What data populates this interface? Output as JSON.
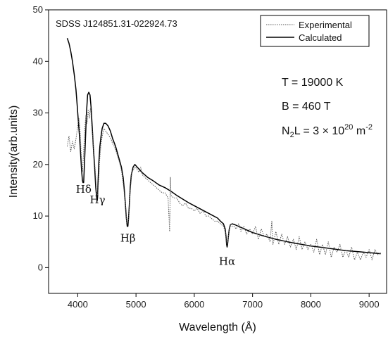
{
  "chart_data": {
    "type": "line",
    "annotation": "SDSS J124851.31-022924.73",
    "xlabel": "Wavelength (Å)",
    "ylabel": "Intensity(arb.units)",
    "xlim": [
      3500,
      9300
    ],
    "ylim": [
      -5,
      50
    ],
    "xticks": [
      4000,
      5000,
      6000,
      7000,
      8000,
      9000
    ],
    "yticks": [
      0,
      10,
      20,
      30,
      40,
      50
    ],
    "legend": {
      "placement": "top-right",
      "entries": [
        "Experimental",
        "Calculated"
      ]
    },
    "parameters": {
      "temperature": "T = 19000 K",
      "field": "B = 460 T",
      "column_main": "N",
      "column_sub": "2",
      "column_mid": "L = 3 × 10",
      "column_sup": "20",
      "column_unit": " m",
      "column_unit_sup": "-2"
    },
    "line_labels": [
      {
        "text": "Hδ",
        "x": 4102,
        "y": 14.5
      },
      {
        "text": "Hγ",
        "x": 4340,
        "y": 12.5
      },
      {
        "text": "Hβ",
        "x": 4861,
        "y": 5.0
      },
      {
        "text": "Hα",
        "x": 6563,
        "y": 0.5
      }
    ],
    "series": [
      {
        "name": "Calculated",
        "style": "solid",
        "color": "#000000",
        "x": [
          3820,
          3850,
          3880,
          3910,
          3940,
          3970,
          3990,
          4010,
          4030,
          4050,
          4065,
          4080,
          4090,
          4102,
          4115,
          4130,
          4150,
          4170,
          4190,
          4210,
          4230,
          4250,
          4270,
          4290,
          4310,
          4325,
          4335,
          4340,
          4348,
          4360,
          4380,
          4400,
          4420,
          4450,
          4480,
          4520,
          4560,
          4600,
          4650,
          4700,
          4750,
          4780,
          4800,
          4820,
          4835,
          4850,
          4861,
          4872,
          4885,
          4900,
          4920,
          4950,
          4980,
          5020,
          5060,
          5100,
          5200,
          5300,
          5400,
          5500,
          5600,
          5700,
          5800,
          5900,
          6000,
          6100,
          6200,
          6300,
          6400,
          6450,
          6500,
          6530,
          6545,
          6555,
          6563,
          6572,
          6585,
          6600,
          6620,
          6650,
          6700,
          6800,
          6900,
          7000,
          7200,
          7400,
          7600,
          7800,
          8000,
          8200,
          8400,
          8600,
          8800,
          9000,
          9200
        ],
        "y": [
          44.5,
          43.5,
          42.0,
          40.0,
          37.5,
          34.5,
          31.5,
          28.5,
          25.5,
          22.0,
          19.0,
          17.0,
          16.5,
          16.5,
          20.0,
          24.0,
          30.0,
          33.5,
          34.0,
          33.5,
          31.0,
          27.0,
          23.0,
          19.5,
          15.5,
          13.5,
          13.0,
          13.5,
          16.5,
          20.0,
          23.5,
          25.5,
          27.0,
          28.0,
          28.0,
          27.5,
          26.5,
          25.0,
          23.5,
          21.5,
          19.5,
          17.5,
          15.0,
          12.0,
          9.5,
          8.0,
          8.0,
          9.5,
          12.0,
          15.5,
          18.0,
          19.5,
          20.0,
          19.5,
          19.0,
          18.5,
          17.5,
          16.8,
          16.0,
          15.5,
          14.8,
          14.0,
          13.3,
          12.6,
          12.0,
          11.4,
          10.8,
          10.2,
          9.6,
          9.0,
          8.5,
          7.5,
          6.0,
          4.5,
          4.0,
          4.5,
          6.0,
          7.5,
          8.3,
          8.5,
          8.3,
          7.8,
          7.3,
          6.8,
          6.1,
          5.5,
          5.0,
          4.6,
          4.2,
          3.9,
          3.6,
          3.3,
          3.1,
          2.9,
          2.7
        ]
      },
      {
        "name": "Experimental",
        "style": "dotted",
        "color": "#555555",
        "x": [
          3820,
          3850,
          3880,
          3910,
          3940,
          3970,
          4000,
          4020,
          4040,
          4060,
          4080,
          4100,
          4120,
          4140,
          4160,
          4180,
          4200,
          4220,
          4240,
          4260,
          4280,
          4300,
          4320,
          4340,
          4360,
          4380,
          4400,
          4420,
          4450,
          4480,
          4510,
          4540,
          4570,
          4600,
          4630,
          4660,
          4700,
          4740,
          4780,
          4810,
          4830,
          4845,
          4861,
          4875,
          4890,
          4910,
          4930,
          4960,
          4990,
          5020,
          5050,
          5080,
          5110,
          5150,
          5200,
          5250,
          5300,
          5350,
          5400,
          5450,
          5500,
          5550,
          5577,
          5590,
          5600,
          5650,
          5700,
          5750,
          5800,
          5850,
          5900,
          5950,
          6000,
          6050,
          6100,
          6150,
          6200,
          6250,
          6300,
          6350,
          6400,
          6450,
          6500,
          6530,
          6550,
          6563,
          6575,
          6590,
          6610,
          6630,
          6650,
          6680,
          6720,
          6760,
          6800,
          6850,
          6900,
          6950,
          7000,
          7050,
          7100,
          7150,
          7200,
          7250,
          7300,
          7330,
          7350,
          7400,
          7450,
          7500,
          7550,
          7600,
          7650,
          7700,
          7750,
          7800,
          7850,
          7900,
          7950,
          8000,
          8050,
          8100,
          8150,
          8200,
          8250,
          8300,
          8350,
          8400,
          8450,
          8500,
          8550,
          8600,
          8650,
          8700,
          8750,
          8800,
          8850,
          8900,
          8950,
          9000,
          9050,
          9100,
          9150,
          9200
        ],
        "y": [
          23.5,
          25.5,
          22.5,
          24.5,
          23.0,
          25.0,
          27.5,
          29.0,
          26.5,
          22.0,
          18.5,
          22.0,
          27.0,
          29.5,
          28.0,
          30.5,
          29.0,
          31.0,
          27.5,
          25.0,
          22.0,
          19.0,
          15.0,
          14.0,
          17.0,
          21.5,
          24.0,
          25.5,
          27.0,
          26.5,
          26.0,
          25.5,
          25.0,
          24.0,
          23.5,
          22.5,
          21.0,
          19.5,
          16.5,
          13.0,
          10.5,
          8.5,
          8.5,
          9.5,
          13.5,
          16.0,
          18.5,
          19.0,
          19.5,
          19.0,
          18.5,
          19.5,
          18.0,
          17.5,
          17.0,
          16.5,
          16.0,
          15.5,
          15.0,
          14.5,
          14.5,
          13.5,
          7.0,
          17.5,
          14.0,
          13.5,
          13.5,
          12.5,
          12.0,
          12.5,
          11.5,
          11.5,
          11.0,
          11.5,
          10.5,
          11.0,
          10.0,
          10.0,
          9.5,
          9.0,
          9.0,
          8.5,
          8.0,
          7.0,
          5.0,
          4.5,
          5.0,
          6.5,
          8.0,
          8.5,
          8.0,
          8.0,
          7.5,
          8.5,
          7.0,
          8.0,
          6.5,
          7.5,
          6.5,
          8.0,
          5.5,
          7.5,
          6.0,
          6.5,
          5.0,
          9.0,
          4.5,
          7.0,
          4.5,
          6.5,
          4.5,
          6.0,
          4.0,
          5.5,
          3.5,
          6.0,
          3.5,
          5.0,
          3.5,
          4.5,
          3.0,
          5.5,
          2.5,
          4.5,
          2.5,
          5.0,
          2.0,
          4.0,
          3.0,
          4.5,
          2.0,
          3.5,
          2.0,
          4.0,
          1.5,
          3.0,
          1.5,
          3.0,
          2.0,
          3.5,
          1.5,
          3.5,
          2.5,
          3.0
        ]
      }
    ]
  }
}
